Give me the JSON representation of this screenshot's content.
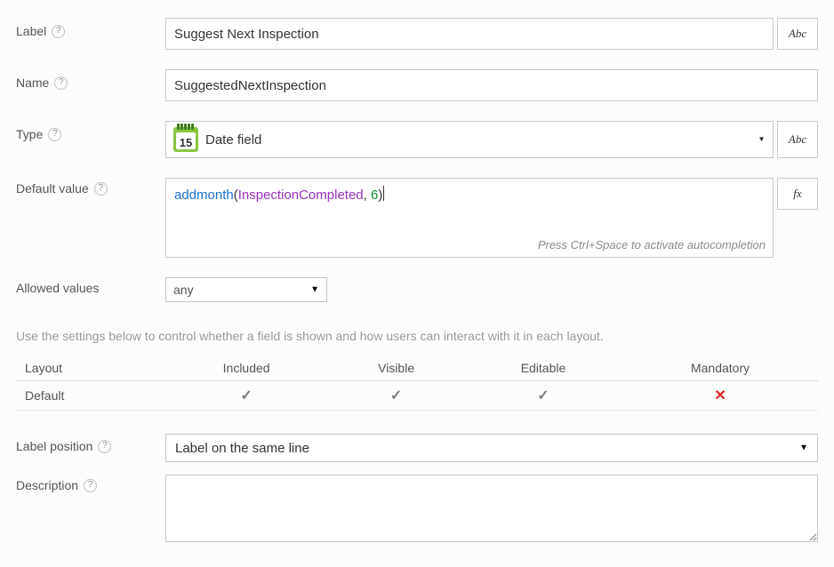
{
  "labels": {
    "label": "Label",
    "name": "Name",
    "type": "Type",
    "default_value": "Default value",
    "allowed_values": "Allowed values",
    "label_position": "Label position",
    "description": "Description"
  },
  "fields": {
    "label_value": "Suggest Next Inspection",
    "name_value": "SuggestedNextInspection",
    "type_value": "Date field",
    "type_icon_day": "15",
    "allowed_values_value": "any",
    "label_position_value": "Label on the same line",
    "description_value": ""
  },
  "formula": {
    "fn": "addmonth",
    "open": "(",
    "arg1": "InspectionCompleted",
    "comma": ", ",
    "arg2": "6",
    "close": ")",
    "hint": "Press Ctrl+Space to activate autocompletion"
  },
  "side_buttons": {
    "abc": "Abc",
    "fx": "fx"
  },
  "section_note": "Use the settings below to control whether a field is shown and how users can interact with it in each layout.",
  "layout_table": {
    "columns": [
      "Layout",
      "Included",
      "Visible",
      "Editable",
      "Mandatory"
    ],
    "rows": [
      {
        "name": "Default",
        "included": true,
        "visible": true,
        "editable": true,
        "mandatory": false
      }
    ]
  },
  "colors": {
    "border": "#c9c9c9",
    "text": "#555555",
    "fn": "#1a6fcc",
    "id": "#9b2fbd",
    "num": "#0f8a2f",
    "cross": "#d82424",
    "cal_bg": "#8bc53f"
  }
}
